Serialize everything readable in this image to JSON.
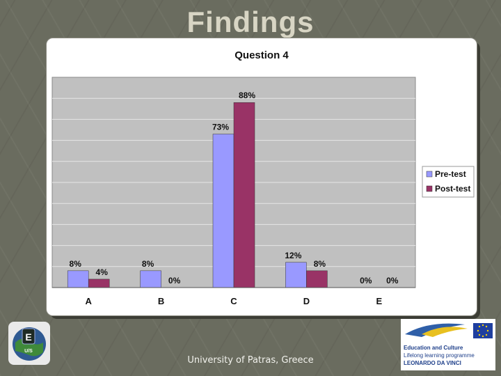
{
  "slide": {
    "title": "Findings",
    "footer": "University of Patras, Greece"
  },
  "logos": {
    "left_icon": "globe-keyboard-logo-icon",
    "left_text": "E",
    "left_subtext": "U/S",
    "right_icon": "eu-lifelong-learning-logo",
    "right_lines": [
      "Education and Culture",
      "Lifelong learning programme",
      "LEONARDO DA VINCI"
    ]
  },
  "chart_data": {
    "type": "bar",
    "title": "Question 4",
    "categories": [
      "A",
      "B",
      "C",
      "D",
      "E"
    ],
    "series": [
      {
        "name": "Pre-test",
        "values": [
          8,
          8,
          73,
          12,
          0
        ],
        "color": "#9999ff"
      },
      {
        "name": "Post-test",
        "values": [
          4,
          0,
          88,
          8,
          0
        ],
        "color": "#993366"
      }
    ],
    "value_labels": [
      [
        "8%",
        "8%",
        "73%",
        "12%",
        "0%"
      ],
      [
        "4%",
        "0%",
        "88%",
        "8%",
        "0%"
      ]
    ],
    "ylim": [
      0,
      100
    ],
    "grid": true,
    "legend": "right",
    "plot_background": "#c0c0c0"
  }
}
